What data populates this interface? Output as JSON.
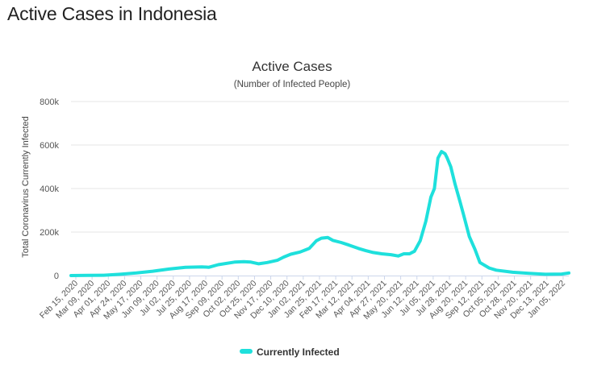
{
  "page": {
    "heading": "Active Cases in Indonesia"
  },
  "chart_data": {
    "type": "line",
    "title": "Active Cases",
    "subtitle": "(Number of Infected People)",
    "ylabel": "Total Coronavirus Currently Infected",
    "xlabel": "",
    "ylim": [
      0,
      800000
    ],
    "yticks": [
      0,
      200000,
      400000,
      600000,
      800000
    ],
    "ytick_labels": [
      "0",
      "200k",
      "400k",
      "600k",
      "800k"
    ],
    "categories": [
      "Feb 15, 2020",
      "Mar 09, 2020",
      "Apr 01, 2020",
      "Apr 24, 2020",
      "May 17, 2020",
      "Jun 09, 2020",
      "Jul 02, 2020",
      "Jul 25, 2020",
      "Aug 17, 2020",
      "Sep 09, 2020",
      "Oct 02, 2020",
      "Oct 25, 2020",
      "Nov 17, 2020",
      "Dec 10, 2020",
      "Jan 02, 2021",
      "Jan 25, 2021",
      "Feb 17, 2021",
      "Mar 12, 2021",
      "Apr 04, 2021",
      "Apr 27, 2021",
      "May 20, 2021",
      "Jun 12, 2021",
      "Jul 05, 2021",
      "Jul 28, 2021",
      "Aug 20, 2021",
      "Sep 12, 2021",
      "Oct 05, 2021",
      "Oct 28, 2021",
      "Nov 20, 2021",
      "Dec 13, 2021",
      "Jan 05, 2022"
    ],
    "grid": true,
    "legend_position": "bottom-center",
    "series": [
      {
        "name": "Currently Infected",
        "color": "#1ee0dc",
        "points": [
          [
            "2020-02-15",
            0
          ],
          [
            "2020-03-09",
            1000
          ],
          [
            "2020-04-01",
            1500
          ],
          [
            "2020-04-24",
            6000
          ],
          [
            "2020-05-17",
            12000
          ],
          [
            "2020-06-09",
            20000
          ],
          [
            "2020-07-02",
            30000
          ],
          [
            "2020-07-25",
            38000
          ],
          [
            "2020-08-17",
            40000
          ],
          [
            "2020-08-27",
            38000
          ],
          [
            "2020-09-09",
            50000
          ],
          [
            "2020-10-02",
            62000
          ],
          [
            "2020-10-15",
            64000
          ],
          [
            "2020-10-25",
            62000
          ],
          [
            "2020-11-05",
            54000
          ],
          [
            "2020-11-17",
            60000
          ],
          [
            "2020-12-01",
            70000
          ],
          [
            "2020-12-10",
            85000
          ],
          [
            "2020-12-20",
            98000
          ],
          [
            "2021-01-02",
            108000
          ],
          [
            "2021-01-15",
            125000
          ],
          [
            "2021-01-25",
            160000
          ],
          [
            "2021-02-01",
            172000
          ],
          [
            "2021-02-10",
            175000
          ],
          [
            "2021-02-17",
            162000
          ],
          [
            "2021-03-01",
            152000
          ],
          [
            "2021-03-12",
            140000
          ],
          [
            "2021-03-25",
            125000
          ],
          [
            "2021-04-04",
            115000
          ],
          [
            "2021-04-15",
            106000
          ],
          [
            "2021-04-27",
            100000
          ],
          [
            "2021-05-10",
            96000
          ],
          [
            "2021-05-20",
            90000
          ],
          [
            "2021-05-28",
            100000
          ],
          [
            "2021-06-05",
            100000
          ],
          [
            "2021-06-12",
            112000
          ],
          [
            "2021-06-20",
            160000
          ],
          [
            "2021-06-28",
            250000
          ],
          [
            "2021-07-05",
            360000
          ],
          [
            "2021-07-10",
            400000
          ],
          [
            "2021-07-15",
            540000
          ],
          [
            "2021-07-20",
            570000
          ],
          [
            "2021-07-25",
            560000
          ],
          [
            "2021-07-28",
            540000
          ],
          [
            "2021-08-02",
            500000
          ],
          [
            "2021-08-08",
            420000
          ],
          [
            "2021-08-15",
            340000
          ],
          [
            "2021-08-20",
            280000
          ],
          [
            "2021-08-28",
            180000
          ],
          [
            "2021-09-05",
            120000
          ],
          [
            "2021-09-12",
            60000
          ],
          [
            "2021-09-25",
            35000
          ],
          [
            "2021-10-05",
            25000
          ],
          [
            "2021-10-28",
            15000
          ],
          [
            "2021-11-20",
            10000
          ],
          [
            "2021-12-13",
            6000
          ],
          [
            "2022-01-05",
            7000
          ],
          [
            "2022-01-15",
            12000
          ]
        ]
      }
    ]
  }
}
